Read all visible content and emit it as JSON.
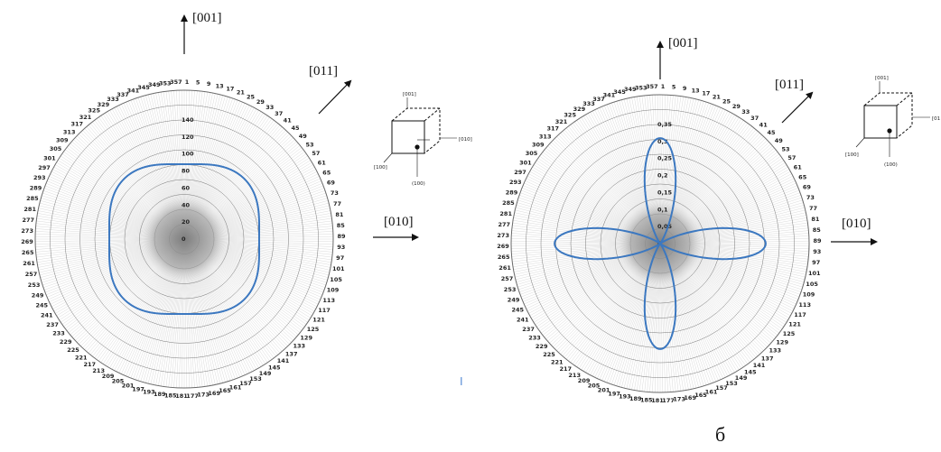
{
  "colors": {
    "curve": "#3c78c0",
    "grid": "#9a9a9a",
    "axis": "#111111",
    "center_blob": "#8c8c8c"
  },
  "caption": "б",
  "cursor_glyph": "I",
  "chart_data": [
    {
      "type": "polar-line",
      "angle_tick_labels": [
        "1",
        "5",
        "9",
        "13",
        "17",
        "21",
        "25",
        "29",
        "33",
        "37",
        "41",
        "45",
        "49",
        "53",
        "57",
        "61",
        "65",
        "69",
        "73",
        "77",
        "81",
        "85",
        "89",
        "93",
        "97",
        "101",
        "105",
        "109",
        "113",
        "117",
        "121",
        "125",
        "129",
        "133",
        "137",
        "141",
        "145",
        "149",
        "153",
        "157",
        "161",
        "165",
        "169",
        "173",
        "177",
        "181",
        "185",
        "189",
        "193",
        "197",
        "201",
        "205",
        "209",
        "213",
        "217",
        "221",
        "225",
        "229",
        "233",
        "237",
        "241",
        "245",
        "249",
        "253",
        "257",
        "261",
        "265",
        "269",
        "273",
        "277",
        "281",
        "285",
        "289",
        "293",
        "297",
        "301",
        "305",
        "309",
        "313",
        "317",
        "321",
        "325",
        "329",
        "333",
        "337",
        "341",
        "345",
        "349",
        "353",
        "357"
      ],
      "radial_ticks": [
        "0",
        "20",
        "40",
        "60",
        "80",
        "100",
        "120",
        "140"
      ],
      "rlim": [
        0,
        140
      ],
      "curve": {
        "mean": 94,
        "amp": 6,
        "harmonic": 4
      },
      "labels": {
        "up": "[001]",
        "diag": "[011]",
        "right": "[010]"
      },
      "cube_labels": {
        "top": "[001]",
        "right": "[010]",
        "left": "[100]",
        "bottom": "(100)"
      }
    },
    {
      "type": "polar-line",
      "angle_tick_labels": [
        "1",
        "5",
        "9",
        "13",
        "17",
        "21",
        "25",
        "29",
        "33",
        "37",
        "41",
        "45",
        "49",
        "53",
        "57",
        "61",
        "65",
        "69",
        "73",
        "77",
        "81",
        "85",
        "89",
        "93",
        "97",
        "101",
        "105",
        "109",
        "113",
        "117",
        "121",
        "125",
        "129",
        "133",
        "137",
        "141",
        "145",
        "149",
        "153",
        "157",
        "161",
        "165",
        "169",
        "173",
        "177",
        "181",
        "185",
        "189",
        "193",
        "197",
        "201",
        "205",
        "209",
        "213",
        "217",
        "221",
        "225",
        "229",
        "233",
        "237",
        "241",
        "245",
        "249",
        "253",
        "257",
        "261",
        "265",
        "269",
        "273",
        "277",
        "281",
        "285",
        "289",
        "293",
        "297",
        "301",
        "305",
        "309",
        "313",
        "317",
        "321",
        "325",
        "329",
        "333",
        "337",
        "341",
        "345",
        "349",
        "353",
        "357"
      ],
      "radial_ticks": [
        "0",
        "0,05",
        "0,1",
        "0,15",
        "0,2",
        "0,25",
        "0,3",
        "0,35"
      ],
      "rlim": [
        0,
        0.35
      ],
      "curve": {
        "max": 0.31,
        "shape": "cos2_4lobe"
      },
      "labels": {
        "up": "[001]",
        "diag": "[011]",
        "right": "[010]"
      },
      "cube_labels": {
        "top": "[001]",
        "right": "[01",
        "left": "[100]",
        "bottom": "(100)"
      }
    }
  ]
}
